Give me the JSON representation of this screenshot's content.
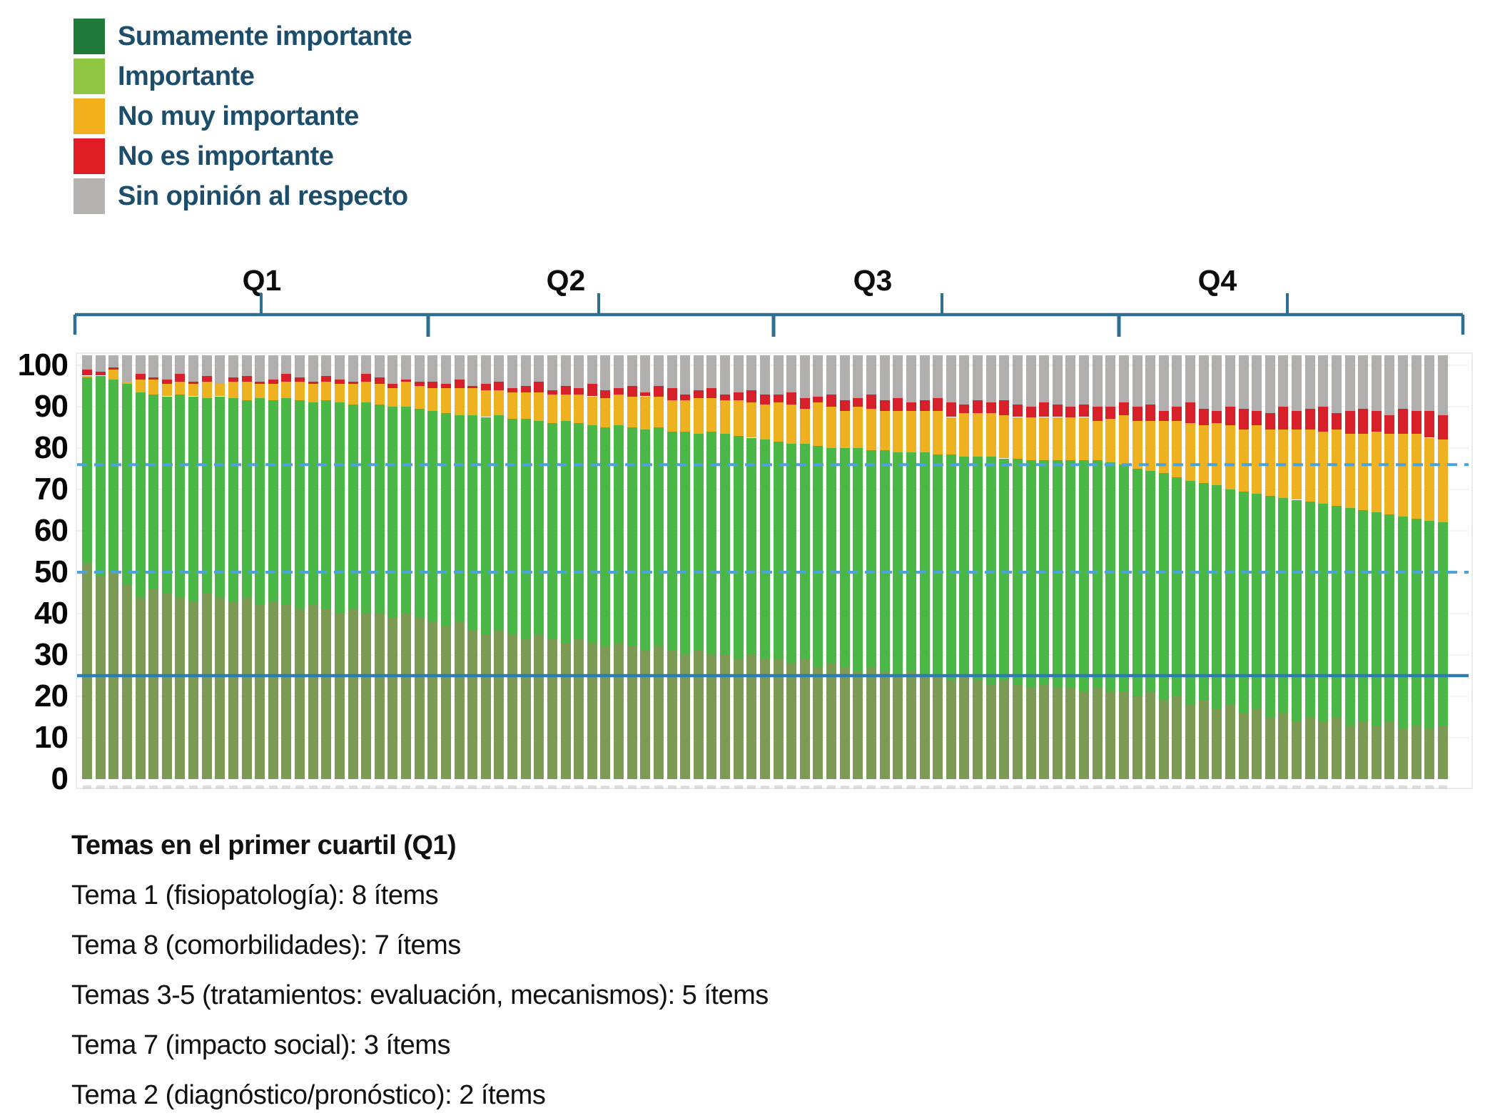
{
  "legend": {
    "items": [
      {
        "label": "Sumamente importante",
        "color": "#1f7a3a",
        "bar_color": "#7d9b55"
      },
      {
        "label": "Importante",
        "color": "#8fc742",
        "bar_color": "#4bb747"
      },
      {
        "label": "No muy importante",
        "color": "#f2b01c",
        "bar_color": "#eeb120"
      },
      {
        "label": "No es importante",
        "color": "#e01d25",
        "bar_color": "#d8202a"
      },
      {
        "label": "Sin opinión al respecto",
        "color": "#b5b3b2",
        "bar_color": "#b1afae"
      }
    ],
    "text_color": "#1c4e6b"
  },
  "quartiles": {
    "labels": [
      "Q1",
      "Q2",
      "Q3",
      "Q4"
    ],
    "bracket_color": "#2e6f91",
    "boundaries_after_bar": [
      26,
      52,
      78
    ]
  },
  "y_axis": {
    "ticks": [
      0,
      10,
      20,
      30,
      40,
      50,
      60,
      70,
      80,
      90,
      100
    ]
  },
  "chart_data": {
    "type": "bar",
    "stacked": true,
    "unit": "percent",
    "n_bars": 103,
    "title": "",
    "xlabel": "",
    "ylabel": "",
    "ylim": [
      0,
      100
    ],
    "grid": "faint horizontal every 10",
    "legend_position": "top-left",
    "reference_lines": [
      {
        "value": 25,
        "style": "solid",
        "color": "#2e7cb4"
      },
      {
        "value": 50,
        "style": "dashed",
        "color": "#4ba2dc"
      },
      {
        "value": 76,
        "style": "dashed",
        "color": "#4ba2dc"
      }
    ],
    "series": [
      {
        "name": "Sumamente importante",
        "color": "#7d9b55",
        "values": [
          52,
          49,
          50,
          47,
          44,
          46,
          45,
          44,
          43,
          45,
          44,
          43,
          44,
          42,
          43,
          42,
          41,
          42,
          41,
          40,
          41,
          40,
          40,
          39,
          40,
          39,
          38,
          37,
          38,
          36,
          35,
          36,
          35,
          34,
          35,
          34,
          33,
          34,
          33,
          32,
          33,
          32,
          31,
          32,
          31,
          30,
          31,
          30,
          30,
          29,
          30,
          29,
          29,
          28,
          29,
          27,
          28,
          27,
          26,
          27,
          26,
          25,
          26,
          25,
          25,
          24,
          25,
          24,
          23,
          24,
          23,
          22,
          23,
          22,
          22,
          21,
          22,
          21,
          21,
          20,
          21,
          19,
          20,
          18,
          19,
          17,
          18,
          16,
          17,
          15,
          16,
          14,
          15,
          14,
          15,
          13,
          14,
          13,
          14,
          12,
          13,
          12,
          13
        ]
      },
      {
        "name": "Importante",
        "color": "#4bb747",
        "values": [
          45,
          48.5,
          46.5,
          48.5,
          49.5,
          47,
          47.5,
          49,
          49.5,
          47,
          48.5,
          49,
          47.5,
          50,
          48.5,
          50,
          50.5,
          49,
          50.5,
          51,
          49.5,
          51,
          50.5,
          51,
          50,
          50.5,
          51,
          51.5,
          50,
          52,
          52.5,
          52,
          52,
          53,
          51.5,
          52,
          53.5,
          52,
          52.5,
          53,
          52.5,
          53,
          53.5,
          53,
          53,
          54,
          52.5,
          54,
          53.5,
          54,
          52.5,
          53,
          52.5,
          53,
          52,
          53.5,
          52,
          53,
          54,
          52.5,
          53.5,
          54,
          53,
          54,
          53.5,
          54.5,
          53,
          54,
          55,
          53.5,
          54.5,
          55,
          54,
          55,
          55,
          56,
          55,
          55.5,
          55,
          55,
          53.5,
          55,
          53,
          54,
          52.5,
          54,
          52,
          53.5,
          52,
          53.5,
          52,
          53.5,
          52,
          52.5,
          51,
          52.5,
          51,
          51.5,
          50,
          51.5,
          50,
          50.5,
          49
        ]
      },
      {
        "name": "No muy importante",
        "color": "#eeb120",
        "values": [
          0.5,
          0,
          2.5,
          0.5,
          3,
          3.5,
          3,
          3,
          3,
          4,
          3,
          4,
          4.5,
          3.5,
          4,
          4,
          4.5,
          4.5,
          4.5,
          4.5,
          5,
          5,
          5,
          4.5,
          6,
          5.5,
          5.5,
          6,
          6.5,
          6.5,
          6.5,
          6,
          6.5,
          6.5,
          7,
          7,
          6.5,
          7,
          7,
          7,
          7.5,
          7.5,
          8,
          7.5,
          7.5,
          7.5,
          8.5,
          8,
          8,
          8.5,
          8.5,
          8.5,
          9.5,
          9.5,
          8.5,
          10.5,
          10,
          9,
          10,
          10,
          9.5,
          10,
          10,
          10,
          10.5,
          9,
          10.5,
          10.5,
          10.5,
          10.5,
          10,
          10.5,
          10.5,
          10.5,
          10.5,
          10.5,
          9.5,
          10.5,
          12,
          11.5,
          12,
          12.5,
          13.5,
          14,
          14,
          15,
          15.5,
          15,
          16.5,
          16,
          16.5,
          17,
          17.5,
          17.5,
          18.5,
          18,
          18.5,
          19.5,
          19.5,
          20,
          20.5,
          20,
          20
        ]
      },
      {
        "name": "No es importante",
        "color": "#d8202a",
        "values": [
          1.5,
          1,
          0.5,
          0,
          1.5,
          0.5,
          1,
          2,
          0.5,
          1.5,
          0,
          1,
          1.5,
          0.5,
          1,
          2,
          1,
          0.5,
          1.5,
          1,
          0.5,
          2,
          1.5,
          1,
          0.5,
          1,
          1.5,
          1,
          2,
          0.5,
          1.5,
          2,
          1,
          1.5,
          2.5,
          1,
          2,
          1.5,
          3,
          2,
          1.5,
          2.5,
          1,
          2.5,
          3,
          1.5,
          2,
          2.5,
          1.5,
          2,
          3,
          2.5,
          2,
          3,
          2.5,
          1.5,
          3,
          2.5,
          2,
          3.5,
          2.5,
          3,
          2,
          2.5,
          3,
          3.5,
          2,
          3,
          2.5,
          3.5,
          3,
          2.5,
          3.5,
          3,
          2.5,
          3,
          3.5,
          3,
          3,
          3.5,
          4,
          2.5,
          3.5,
          5,
          4,
          3,
          4.5,
          5,
          3.5,
          4,
          5.5,
          4.5,
          5,
          6,
          4,
          5.5,
          6,
          5,
          4.5,
          6,
          5.5,
          6.5,
          6
        ]
      },
      {
        "name": "Sin opinión al respecto",
        "color": "#b1afae",
        "values": [
          1,
          1.5,
          0.5,
          4,
          2,
          3,
          3.5,
          2,
          4,
          2.5,
          4.5,
          3,
          2.5,
          4,
          3.5,
          2,
          3,
          4,
          2.5,
          3.5,
          4,
          2,
          3,
          4.5,
          3.5,
          4,
          4,
          4.5,
          3.5,
          5,
          4.5,
          4,
          5.5,
          5,
          4,
          6,
          5,
          5.5,
          4.5,
          6,
          5.5,
          5,
          6.5,
          5,
          5.5,
          7,
          6,
          5.5,
          7,
          6.5,
          6,
          7,
          7,
          6.5,
          8,
          7.5,
          7,
          8.5,
          8,
          7,
          8.5,
          8,
          9,
          8.5,
          8,
          9,
          9.5,
          8.5,
          9,
          8.5,
          9.5,
          10,
          9,
          9.5,
          10,
          9.5,
          10,
          10,
          9,
          10,
          9.5,
          11,
          10,
          9,
          10.5,
          11,
          10,
          10.5,
          11,
          11.5,
          10,
          11,
          10.5,
          10,
          11.5,
          11,
          10.5,
          11,
          12,
          10.5,
          11,
          11,
          12
        ]
      }
    ]
  },
  "footer": {
    "title": "Temas en el primer cuartil (Q1)",
    "lines": [
      "Tema 1 (fisiopatología): 8 ítems",
      "Tema 8 (comorbilidades): 7 ítems",
      "Temas 3-5 (tratamientos: evaluación, mecanismos): 5 ítems",
      "Tema 7 (impacto social): 3 ítems",
      "Tema 2 (diagnóstico/pronóstico): 2 ítems"
    ]
  }
}
